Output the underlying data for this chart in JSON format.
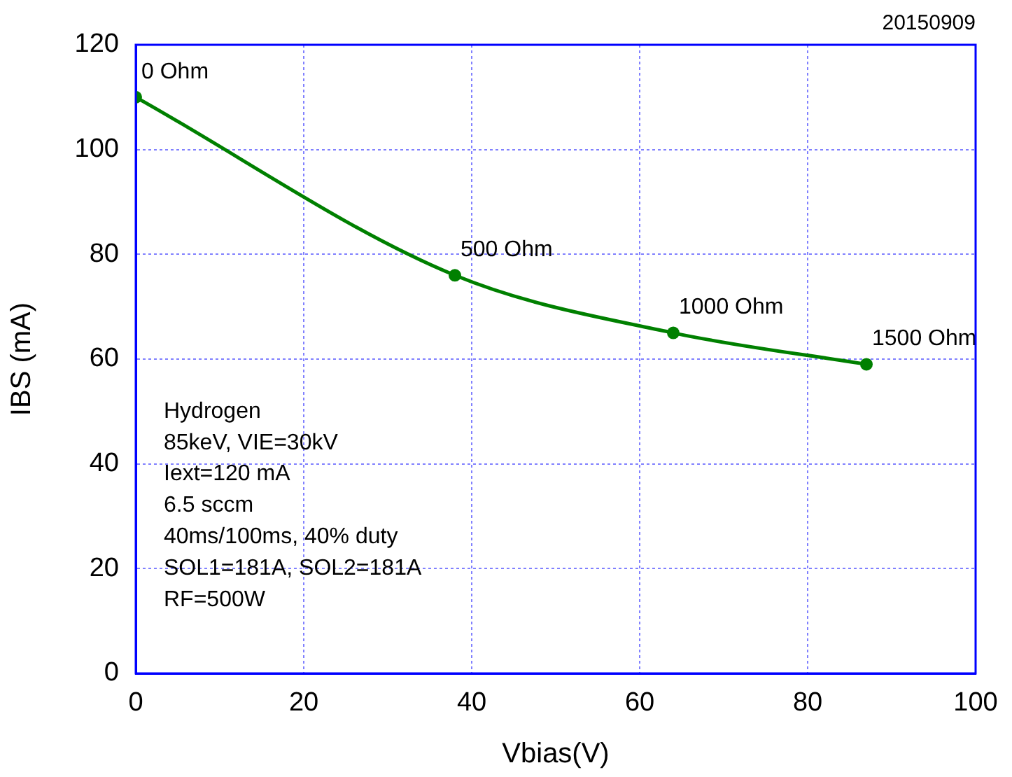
{
  "chart_data": {
    "type": "line",
    "title": "20150909",
    "xlabel": "Vbias(V)",
    "ylabel": "IBS (mA)",
    "x": [
      0,
      38,
      64,
      87
    ],
    "series": [
      {
        "color": "#008000",
        "values": [
          110,
          76,
          65,
          59
        ]
      }
    ],
    "xlim": [
      0,
      100
    ],
    "xticks": [
      0,
      20,
      40,
      60,
      80,
      100
    ],
    "ylim": [
      0,
      120
    ],
    "yticks": [
      0,
      20,
      40,
      60,
      80,
      100,
      120
    ],
    "grid": true,
    "legend": false,
    "marker": "circle",
    "line_style": "solid",
    "annotations": [
      {
        "text": "0 Ohm",
        "x": 0,
        "y": 110
      },
      {
        "text": "500 Ohm",
        "x": 38,
        "y": 76
      },
      {
        "text": "1000 Ohm",
        "x": 64,
        "y": 65
      },
      {
        "text": "1500 Ohm",
        "x": 87,
        "y": 59
      },
      "Hydrogen",
      "85keV, VIE=30kV",
      "Iext=120 mA",
      "6.5 sccm",
      "40ms/100ms, 40% duty",
      "SOL1=181A, SOL2=181A",
      "RF=500W"
    ]
  }
}
